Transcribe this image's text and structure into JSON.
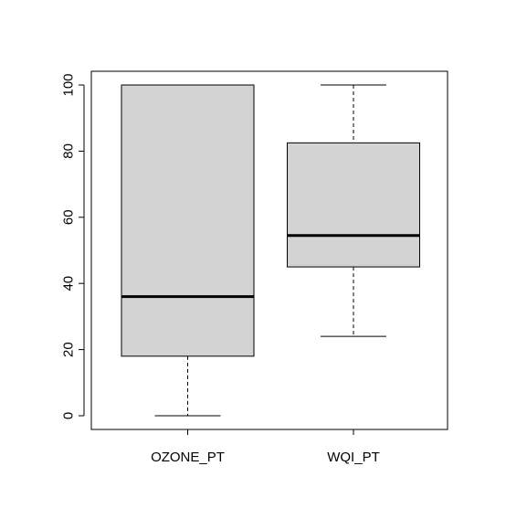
{
  "chart_data": {
    "type": "boxplot",
    "categories": [
      "OZONE_PT",
      "WQI_PT"
    ],
    "series": [
      {
        "category": "OZONE_PT",
        "whisker_low": 0,
        "q1": 18,
        "median": 36,
        "q3": 100,
        "whisker_high": 100
      },
      {
        "category": "WQI_PT",
        "whisker_low": 24,
        "q1": 45,
        "median": 54.5,
        "q3": 82.5,
        "whisker_high": 100
      }
    ],
    "y_ticks": [
      "0",
      "20",
      "40",
      "60",
      "80",
      "100"
    ],
    "ylim": [
      0,
      100
    ],
    "grid": false,
    "legend": "none",
    "colors": {
      "box_fill": "#d3d3d3",
      "stroke": "#000000"
    }
  }
}
